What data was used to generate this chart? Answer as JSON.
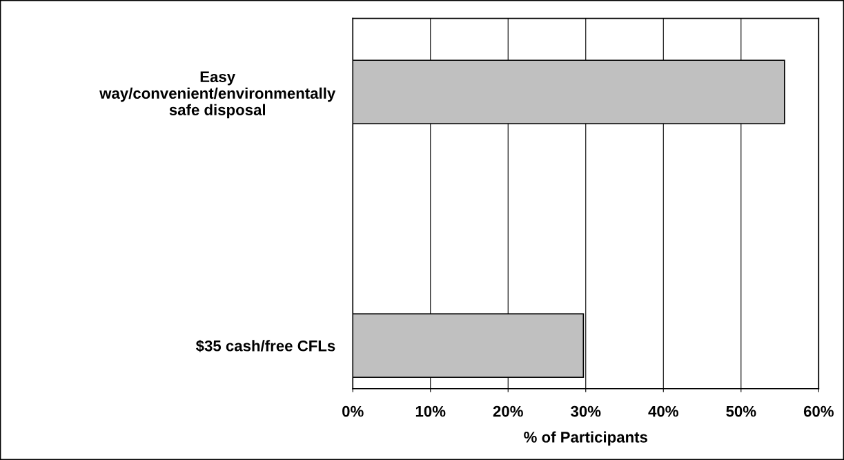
{
  "chart_data": {
    "type": "bar",
    "orientation": "horizontal",
    "xlabel": "% of Participants",
    "categories": [
      "Easy\nway/convenient/environmentally\nsafe disposal",
      "$35 cash/free CFLs"
    ],
    "values": [
      55.6,
      29.7
    ],
    "color": "#c0c0c0",
    "xlim": [
      0,
      60
    ],
    "xticks": [
      {
        "value": 0,
        "label": "0%"
      },
      {
        "value": 10,
        "label": "10%"
      },
      {
        "value": 20,
        "label": "20%"
      },
      {
        "value": 30,
        "label": "30%"
      },
      {
        "value": 40,
        "label": "40%"
      },
      {
        "value": 50,
        "label": "50%"
      },
      {
        "value": 60,
        "label": "60%"
      }
    ],
    "grid": "x",
    "legend": false
  }
}
